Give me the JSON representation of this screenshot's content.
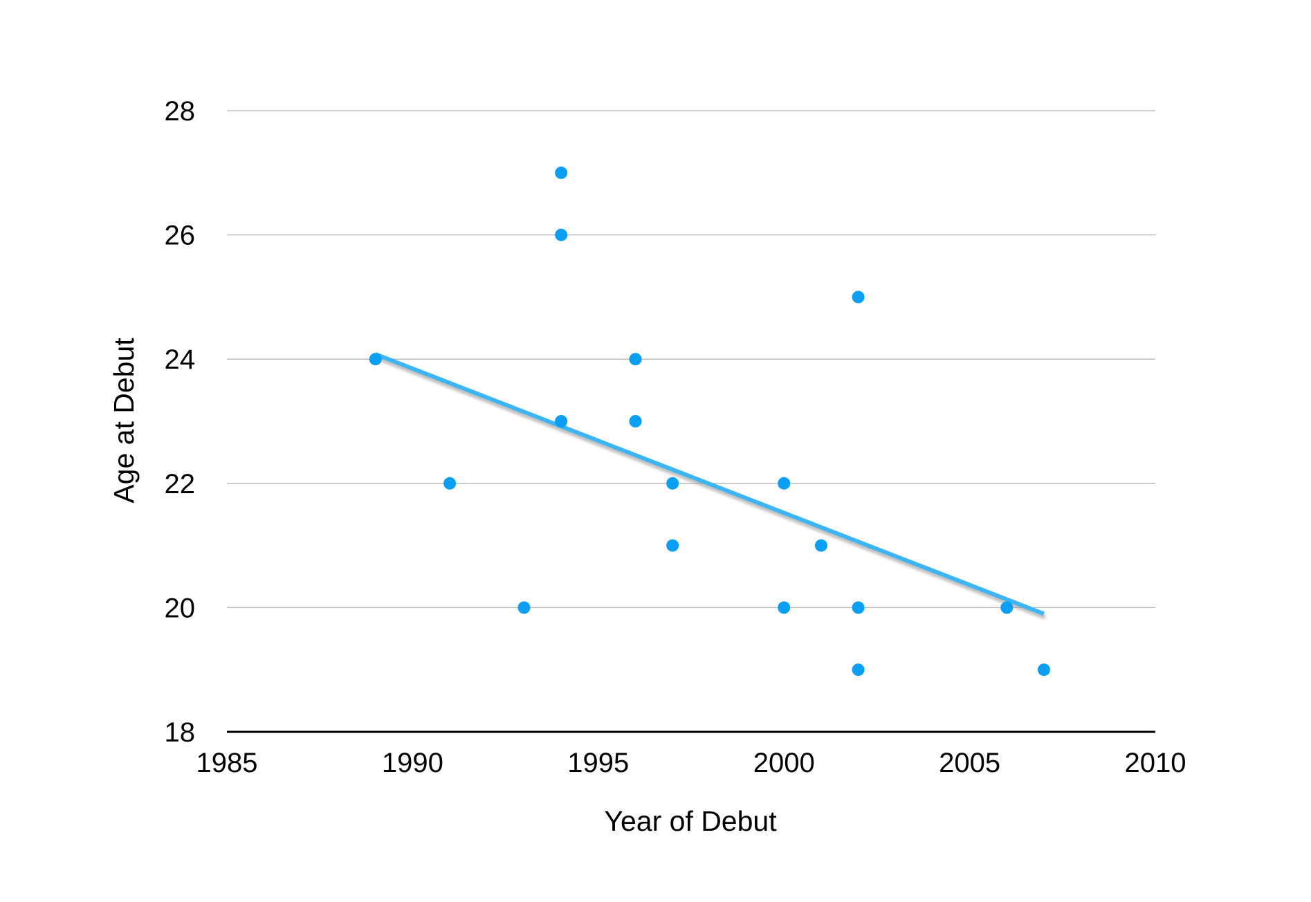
{
  "chart_data": {
    "type": "scatter",
    "title": "",
    "xlabel": "Year of Debut",
    "ylabel": "Age at Debut",
    "xlim": [
      1985,
      2010
    ],
    "ylim": [
      18,
      28
    ],
    "x_ticks": [
      1985,
      1990,
      1995,
      2000,
      2005,
      2010
    ],
    "y_ticks": [
      18,
      20,
      22,
      24,
      26,
      28
    ],
    "grid": "horizontal",
    "legend": "none",
    "series": [
      {
        "points": [
          {
            "x": 1989,
            "y": 24
          },
          {
            "x": 1991,
            "y": 22
          },
          {
            "x": 1993,
            "y": 20
          },
          {
            "x": 1994,
            "y": 27
          },
          {
            "x": 1994,
            "y": 26
          },
          {
            "x": 1994,
            "y": 23
          },
          {
            "x": 1996,
            "y": 24
          },
          {
            "x": 1996,
            "y": 23
          },
          {
            "x": 1997,
            "y": 22
          },
          {
            "x": 1997,
            "y": 21
          },
          {
            "x": 2000,
            "y": 22
          },
          {
            "x": 2000,
            "y": 20
          },
          {
            "x": 2001,
            "y": 21
          },
          {
            "x": 2002,
            "y": 25
          },
          {
            "x": 2002,
            "y": 20
          },
          {
            "x": 2002,
            "y": 19
          },
          {
            "x": 2006,
            "y": 20
          },
          {
            "x": 2007,
            "y": 19
          }
        ]
      }
    ],
    "trendline": {
      "type": "linear",
      "start": {
        "x": 1989,
        "y": 24.08
      },
      "end": {
        "x": 2007,
        "y": 19.9
      }
    },
    "colors": {
      "points": "#0a9ff2",
      "trendline": "#3db5f4",
      "trendline_shadow": "#9a9a9a",
      "grid": "#b4b4b4",
      "axis": "#000000"
    }
  }
}
